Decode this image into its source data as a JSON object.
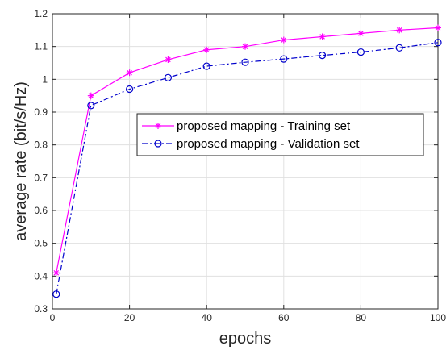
{
  "chart_data": {
    "type": "line",
    "title": "",
    "xlabel": "epochs",
    "ylabel": "average rate (bit/s/Hz)",
    "xlim": [
      0,
      100
    ],
    "ylim": [
      0.3,
      1.2
    ],
    "xticks": [
      0,
      20,
      40,
      60,
      80,
      100
    ],
    "yticks": [
      0.3,
      0.4,
      0.5,
      0.6,
      0.7,
      0.8,
      0.9,
      1,
      1.1,
      1.2
    ],
    "xtick_labels": [
      "0",
      "20",
      "40",
      "60",
      "80",
      "100"
    ],
    "ytick_labels": [
      "0.3",
      "0.4",
      "0.5",
      "0.6",
      "0.7",
      "0.8",
      "0.9",
      "1",
      "1.1",
      "1.2"
    ],
    "grid": true,
    "legend_placement": "center-right",
    "series": [
      {
        "name": "proposed mapping - Training set",
        "color": "#ff00ff",
        "line_style": "solid",
        "marker": "asterisk",
        "x": [
          1,
          10,
          20,
          30,
          40,
          50,
          60,
          70,
          80,
          90,
          100
        ],
        "y": [
          0.41,
          0.95,
          1.02,
          1.06,
          1.09,
          1.1,
          1.12,
          1.13,
          1.14,
          1.15,
          1.157
        ]
      },
      {
        "name": "proposed mapping - Validation set",
        "color": "#0000cc",
        "line_style": "dash-dot",
        "marker": "circle",
        "x": [
          1,
          10,
          20,
          30,
          40,
          50,
          60,
          70,
          80,
          90,
          100
        ],
        "y": [
          0.345,
          0.92,
          0.97,
          1.005,
          1.04,
          1.052,
          1.062,
          1.073,
          1.083,
          1.096,
          1.112
        ]
      }
    ]
  }
}
